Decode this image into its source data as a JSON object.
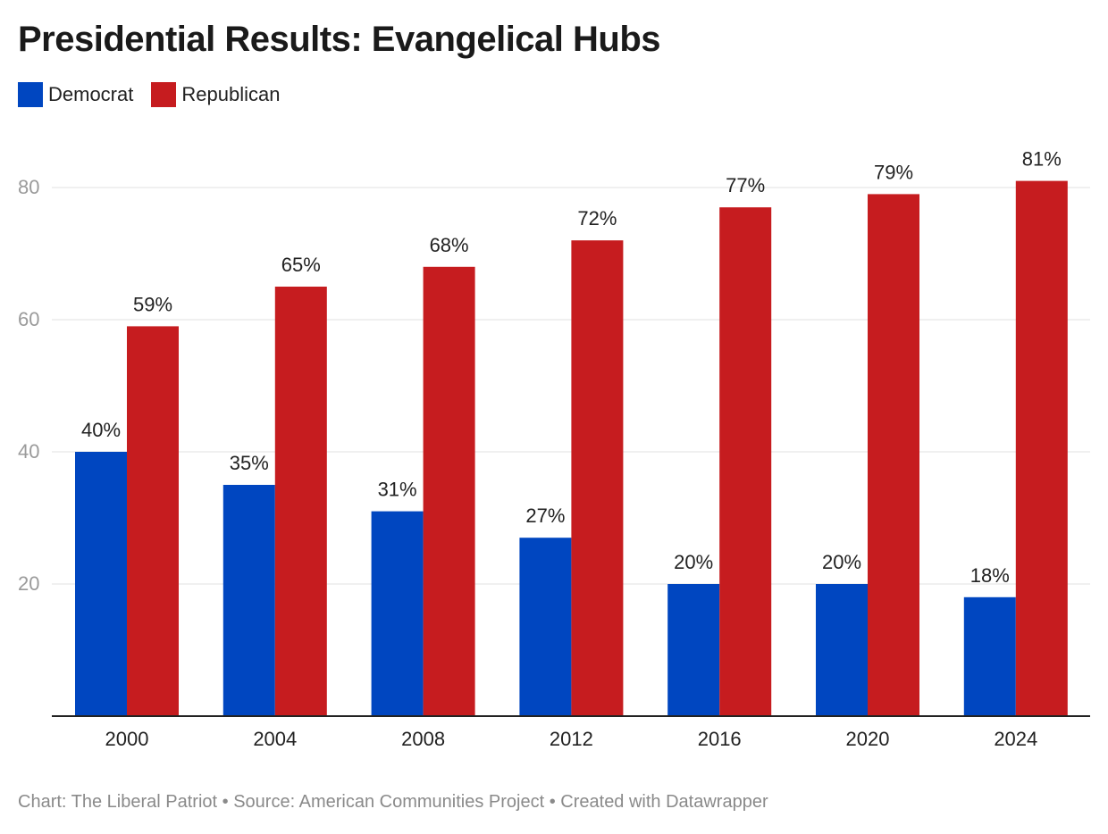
{
  "header": {
    "title": "Presidential Results: Evangelical Hubs"
  },
  "legend": {
    "democrat_label": "Democrat",
    "republican_label": "Republican"
  },
  "colors": {
    "democrat": "#0046c0",
    "republican": "#c61c1f",
    "grid": "#e0e0e0",
    "axis": "#222222",
    "tick_text": "#9a9a9a"
  },
  "footer": {
    "chart_credit": "Chart: The Liberal Patriot",
    "sep1": "•",
    "source": "Source: American Communities Project",
    "sep2": "•",
    "created_with": "Created with Datawrapper"
  },
  "chart_data": {
    "type": "bar",
    "title": "Presidential Results: Evangelical Hubs",
    "xlabel": "",
    "ylabel": "",
    "ylim": [
      0,
      80
    ],
    "yticks": [
      20,
      40,
      60,
      80
    ],
    "grid": true,
    "legend_position": "top-left",
    "categories": [
      "2000",
      "2004",
      "2008",
      "2012",
      "2016",
      "2020",
      "2024"
    ],
    "series": [
      {
        "name": "Democrat",
        "color": "#0046c0",
        "values": [
          40,
          35,
          31,
          27,
          20,
          20,
          18
        ]
      },
      {
        "name": "Republican",
        "color": "#c61c1f",
        "values": [
          59,
          65,
          68,
          72,
          77,
          79,
          81
        ]
      }
    ],
    "value_suffix": "%"
  }
}
